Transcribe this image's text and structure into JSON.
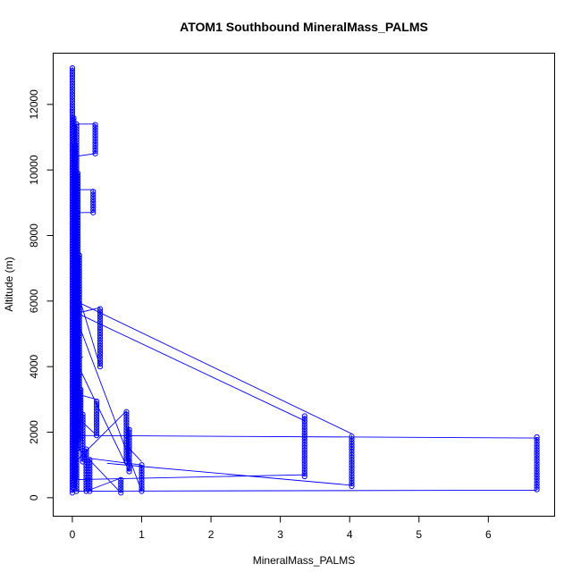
{
  "chart_data": {
    "type": "scatter",
    "title": "ATOM1 Southbound MineralMass_PALMS",
    "xlabel": "MineralMass_PALMS",
    "ylabel": "Altitude (m)",
    "xlim": [
      -0.27,
      6.95
    ],
    "ylim": [
      -550,
      13550
    ],
    "xticks": [
      0,
      1,
      2,
      3,
      4,
      5,
      6
    ],
    "yticks": [
      0,
      2000,
      4000,
      6000,
      8000,
      10000,
      12000
    ],
    "grid": false,
    "legend": "none",
    "marker": "open-circle",
    "connect_points": true,
    "series_color": "#0000ff",
    "clusters": [
      {
        "x": 0.0,
        "y_from": 150,
        "y_to": 13150
      },
      {
        "x": 0.02,
        "y_from": 300,
        "y_to": 11600
      },
      {
        "x": 0.04,
        "y_from": 600,
        "y_to": 10800
      },
      {
        "x": 0.06,
        "y_from": 200,
        "y_to": 11400
      },
      {
        "x": 0.08,
        "y_from": 1500,
        "y_to": 9900
      },
      {
        "x": 0.1,
        "y_from": 1800,
        "y_to": 7400
      },
      {
        "x": 0.12,
        "y_from": 2500,
        "y_to": 3300
      },
      {
        "x": 0.15,
        "y_from": 1100,
        "y_to": 2600
      },
      {
        "x": 0.2,
        "y_from": 200,
        "y_to": 1500
      },
      {
        "x": 0.25,
        "y_from": 200,
        "y_to": 1200
      },
      {
        "x": 0.3,
        "y_from": 8700,
        "y_to": 9400
      },
      {
        "x": 0.33,
        "y_from": 10500,
        "y_to": 11400
      },
      {
        "x": 0.35,
        "y_from": 1900,
        "y_to": 3000
      },
      {
        "x": 0.4,
        "y_from": 4000,
        "y_to": 5800
      },
      {
        "x": 0.7,
        "y_from": 150,
        "y_to": 600
      },
      {
        "x": 0.78,
        "y_from": 1100,
        "y_to": 2650
      },
      {
        "x": 0.82,
        "y_from": 800,
        "y_to": 2150
      },
      {
        "x": 1.0,
        "y_from": 200,
        "y_to": 1000
      },
      {
        "x": 3.35,
        "y_from": 650,
        "y_to": 2500
      },
      {
        "x": 4.03,
        "y_from": 350,
        "y_to": 1900
      },
      {
        "x": 6.7,
        "y_from": 250,
        "y_to": 1850
      }
    ],
    "links": [
      {
        "from": [
          0.0,
          5700
        ],
        "to": [
          3.35,
          2350
        ]
      },
      {
        "from": [
          0.05,
          6000
        ],
        "to": [
          4.03,
          1950
        ]
      },
      {
        "from": [
          0.0,
          1900
        ],
        "to": [
          6.7,
          1820
        ]
      },
      {
        "from": [
          0.0,
          200
        ],
        "to": [
          6.7,
          230
        ]
      },
      {
        "from": [
          0.0,
          550
        ],
        "to": [
          3.35,
          700
        ]
      },
      {
        "from": [
          0.5,
          1050
        ],
        "to": [
          4.03,
          380
        ]
      },
      {
        "from": [
          0.0,
          5800
        ],
        "to": [
          1.0,
          200
        ]
      },
      {
        "from": [
          0.0,
          4400
        ],
        "to": [
          0.82,
          800
        ]
      },
      {
        "from": [
          0.1,
          6100
        ],
        "to": [
          0.4,
          4000
        ]
      },
      {
        "from": [
          0.0,
          1000
        ],
        "to": [
          0.78,
          2650
        ]
      },
      {
        "from": [
          0.2,
          200
        ],
        "to": [
          0.7,
          600
        ]
      },
      {
        "from": [
          0.0,
          11400
        ],
        "to": [
          0.33,
          11400
        ]
      },
      {
        "from": [
          0.0,
          10400
        ],
        "to": [
          0.33,
          10500
        ]
      },
      {
        "from": [
          0.0,
          9400
        ],
        "to": [
          0.3,
          9400
        ]
      },
      {
        "from": [
          0.0,
          8700
        ],
        "to": [
          0.3,
          8700
        ]
      },
      {
        "from": [
          0.0,
          5600
        ],
        "to": [
          0.4,
          5800
        ]
      },
      {
        "from": [
          0.0,
          1700
        ],
        "to": [
          0.7,
          150
        ]
      },
      {
        "from": [
          0.25,
          1200
        ],
        "to": [
          1.0,
          1000
        ]
      },
      {
        "from": [
          0.82,
          1500
        ],
        "to": [
          1.0,
          1100
        ]
      },
      {
        "from": [
          0.0,
          3200
        ],
        "to": [
          0.35,
          3000
        ]
      },
      {
        "from": [
          0.0,
          2600
        ],
        "to": [
          0.35,
          1900
        ]
      },
      {
        "from": [
          0.0,
          4000
        ],
        "to": [
          0.15,
          4300
        ]
      },
      {
        "from": [
          0.0,
          6200
        ],
        "to": [
          0.12,
          5800
        ]
      }
    ]
  }
}
